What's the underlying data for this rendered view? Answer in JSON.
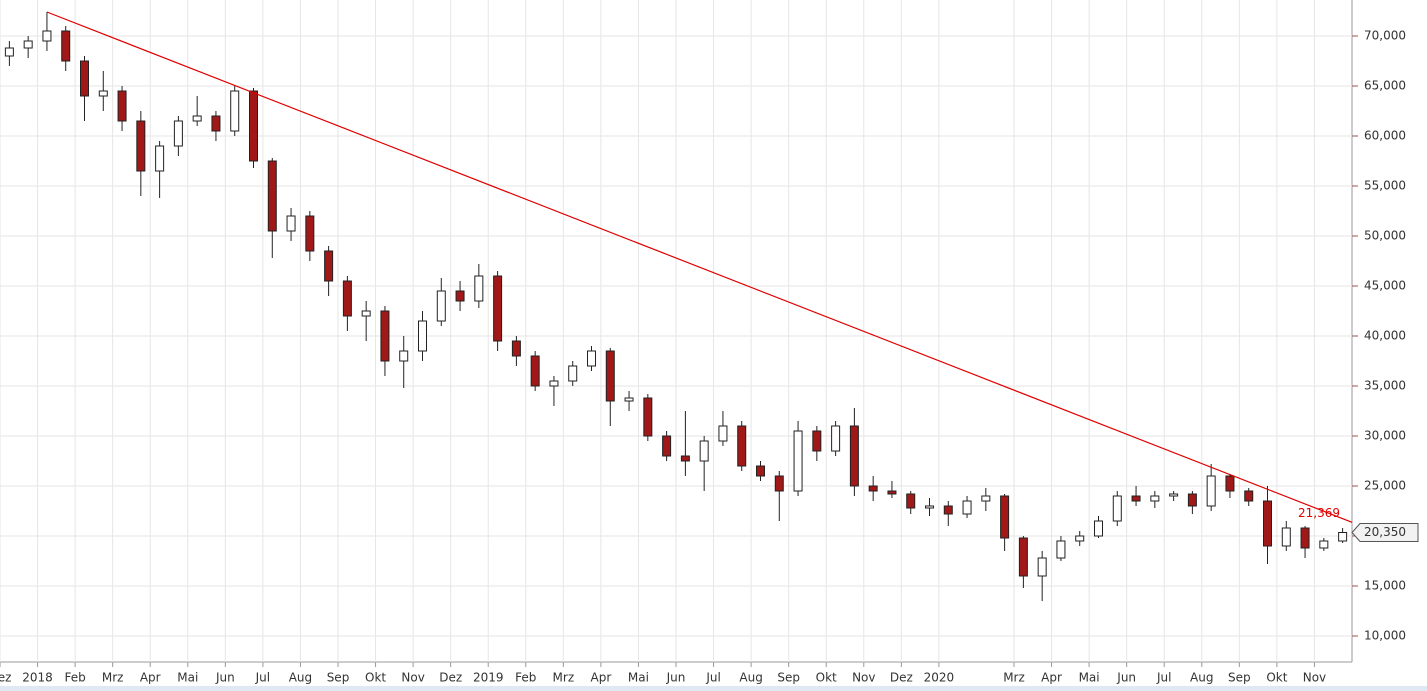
{
  "chart_data": {
    "type": "candlestick",
    "categories": [
      "Dez",
      null,
      "2018",
      null,
      "Feb",
      null,
      "Mrz",
      null,
      "Apr",
      null,
      "Mai",
      null,
      "Jun",
      null,
      "Jul",
      null,
      "Aug",
      null,
      "Sep",
      null,
      "Okt",
      null,
      "Nov",
      null,
      "Dez",
      null,
      "2019",
      null,
      "Feb",
      null,
      "Mrz",
      null,
      "Apr",
      null,
      "Mai",
      null,
      "Jun",
      null,
      "Jul",
      null,
      "Aug",
      null,
      "Sep",
      null,
      "Okt",
      null,
      "Nov",
      null,
      "Dez",
      null,
      "2020",
      null,
      null,
      null,
      "Mrz",
      null,
      "Apr",
      null,
      "Mai",
      null,
      "Jun",
      null,
      "Jul",
      null,
      "Aug",
      null,
      "Sep",
      null,
      "Okt",
      null,
      "Nov",
      null
    ],
    "open": [
      68000,
      68800,
      69500,
      70500,
      67500,
      64000,
      64500,
      61500,
      56500,
      59000,
      61500,
      62000,
      60500,
      64500,
      57500,
      50500,
      52000,
      48500,
      45500,
      42000,
      42500,
      37500,
      38500,
      41500,
      44500,
      43500,
      46000,
      39500,
      38000,
      35000,
      35500,
      37000,
      38500,
      33500,
      33800,
      30000,
      28000,
      27500,
      29500,
      31000,
      27000,
      26000,
      24500,
      30500,
      28500,
      31000,
      25000,
      24500,
      24200,
      22800,
      23000,
      22200,
      23500,
      24000,
      19800,
      16000,
      17800,
      19500,
      20000,
      21500,
      24000,
      23500,
      24000,
      24200,
      23000,
      26000,
      24500,
      23500,
      19000,
      20800,
      18800,
      19500
    ],
    "high": [
      69500,
      70000,
      72400,
      71000,
      68000,
      66500,
      65000,
      62500,
      59500,
      62000,
      64000,
      62500,
      65000,
      64800,
      57800,
      52800,
      52500,
      49000,
      46000,
      43500,
      43000,
      40000,
      42500,
      45800,
      45500,
      47200,
      46500,
      40000,
      38500,
      36000,
      37500,
      39000,
      38800,
      34500,
      34200,
      30500,
      32500,
      30000,
      32500,
      31500,
      27500,
      26500,
      31500,
      31000,
      31500,
      32800,
      26000,
      25500,
      24500,
      23800,
      23500,
      24000,
      24800,
      24200,
      20000,
      18500,
      20000,
      20500,
      22000,
      24500,
      25000,
      24500,
      24500,
      24500,
      27200,
      26200,
      24800,
      25000,
      21500,
      21000,
      19800,
      20800
    ],
    "low": [
      67000,
      67800,
      68500,
      66500,
      61500,
      62500,
      60500,
      54000,
      53800,
      58000,
      61000,
      59500,
      60000,
      56800,
      47800,
      49500,
      47500,
      44000,
      40500,
      39500,
      36000,
      34800,
      37500,
      41000,
      42500,
      42800,
      38500,
      37000,
      34500,
      33000,
      35000,
      36500,
      31000,
      32500,
      29500,
      27500,
      26000,
      24500,
      29000,
      26500,
      25500,
      21500,
      24000,
      27500,
      28000,
      24000,
      23500,
      23800,
      22200,
      22000,
      21000,
      21800,
      22500,
      18500,
      14800,
      13500,
      17500,
      19000,
      19800,
      21000,
      23000,
      22800,
      23500,
      22200,
      22500,
      23800,
      23000,
      17200,
      18500,
      17800,
      18500,
      19300
    ],
    "close": [
      68800,
      69500,
      70500,
      67500,
      64000,
      64500,
      61500,
      56500,
      59000,
      61500,
      62000,
      60500,
      64500,
      57500,
      50500,
      52000,
      48500,
      45500,
      42000,
      42500,
      37500,
      38500,
      41500,
      44500,
      43500,
      46000,
      39500,
      38000,
      35000,
      35500,
      37000,
      38500,
      33500,
      33800,
      30000,
      28000,
      27500,
      29500,
      31000,
      27000,
      26000,
      24500,
      30500,
      28500,
      31000,
      25000,
      24500,
      24200,
      22800,
      23000,
      22200,
      23500,
      24000,
      19800,
      16000,
      17800,
      19500,
      20000,
      21500,
      24000,
      23500,
      24000,
      24200,
      23000,
      26000,
      24500,
      23500,
      19000,
      20800,
      18800,
      19500,
      20350
    ],
    "up_color": "#ffffff",
    "down_color": "#a01818",
    "ylim": [
      7400,
      73600
    ],
    "yticks": [
      {
        "value": 10000,
        "label": "10,000"
      },
      {
        "value": 15000,
        "label": "15,000"
      },
      {
        "value": 20000,
        "label": "20,000"
      },
      {
        "value": 25000,
        "label": "25,000"
      },
      {
        "value": 30000,
        "label": "30,000"
      },
      {
        "value": 35000,
        "label": "35,000"
      },
      {
        "value": 40000,
        "label": "40,000"
      },
      {
        "value": 45000,
        "label": "45,000"
      },
      {
        "value": 50000,
        "label": "50,000"
      },
      {
        "value": 55000,
        "label": "55,000"
      },
      {
        "value": 60000,
        "label": "60,000"
      },
      {
        "value": 65000,
        "label": "65,000"
      },
      {
        "value": 70000,
        "label": "70,000"
      }
    ],
    "grid": true,
    "trendline": {
      "color": "#e00000",
      "start": 72400,
      "end": {
        "value": 21369,
        "label": "21,369"
      }
    },
    "last_price": {
      "value": 20350,
      "label": "20,350"
    }
  }
}
